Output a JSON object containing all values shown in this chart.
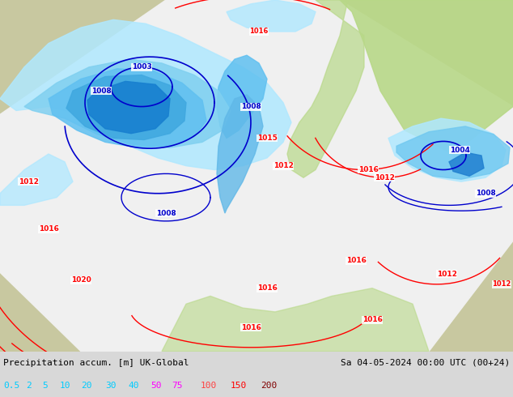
{
  "title_left": "Precipitation accum. [m] UK-Global",
  "title_right": "Sa 04-05-2024 00:00 UTC (00+24)",
  "legend_values": [
    "0.5",
    "2",
    "5",
    "10",
    "20",
    "30",
    "40",
    "50",
    "75",
    "100",
    "150",
    "200"
  ],
  "legend_text_colors": [
    "#00ccff",
    "#00ccff",
    "#00ccff",
    "#00ccff",
    "#00ccff",
    "#00ccff",
    "#00ccff",
    "#ff00ff",
    "#ff00ff",
    "#ff4040",
    "#ff0000",
    "#800000"
  ],
  "bg_color": "#c8c8a0",
  "domain_color": "#f0f0f0",
  "green_color": "#b8d888",
  "bottom_bg": "#d8d8d8",
  "fig_width": 6.34,
  "fig_height": 4.9,
  "dpi": 100,
  "isobar_color_red": "#ff0000",
  "isobar_color_blue": "#0000cc",
  "precip_light": "#b0e8ff",
  "precip_mid": "#60c0f0",
  "precip_deep": "#1090e0",
  "precip_dark": "#0050c0"
}
